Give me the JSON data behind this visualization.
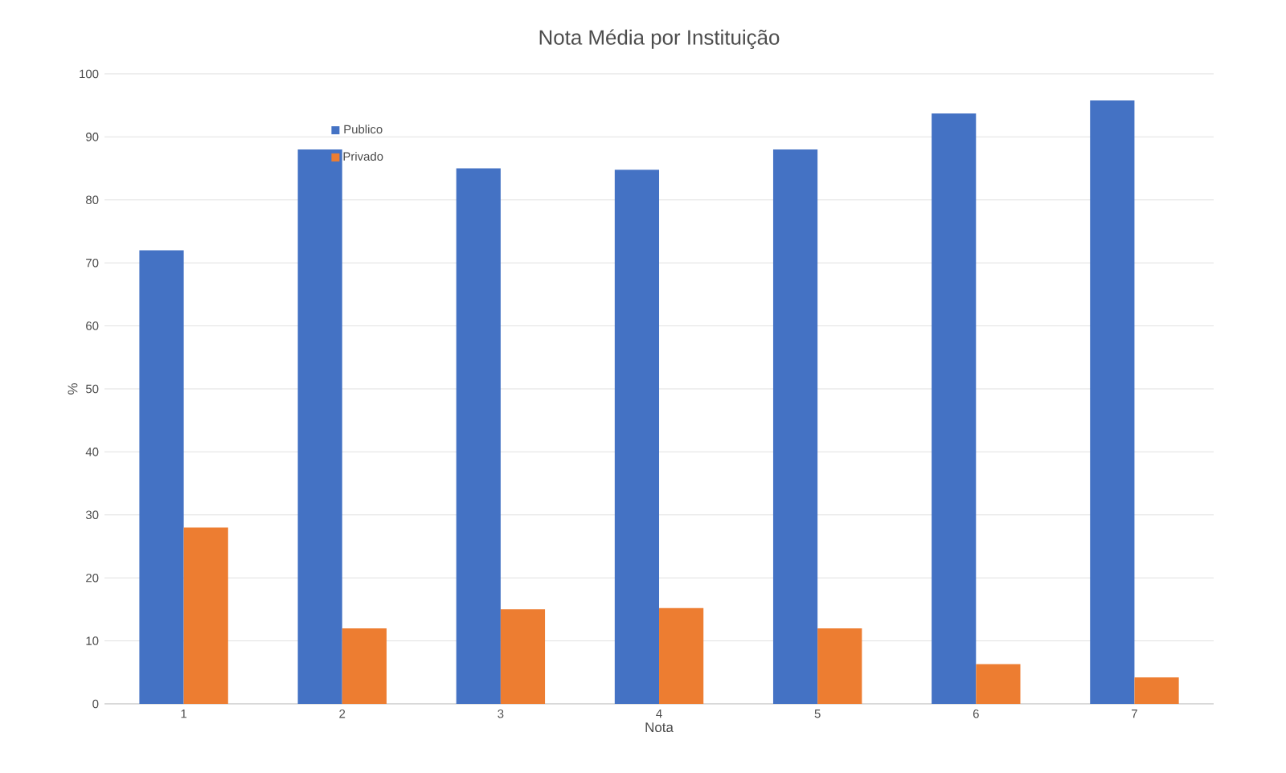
{
  "chart_data": {
    "type": "bar",
    "title": "Nota Média por Instituição",
    "xlabel": "Nota",
    "ylabel": "%",
    "categories": [
      "1",
      "2",
      "3",
      "4",
      "5",
      "6",
      "7"
    ],
    "series": [
      {
        "name": "Publico",
        "color": "#4472c4",
        "values": [
          72,
          88,
          85,
          84.8,
          88,
          93.7,
          95.8
        ]
      },
      {
        "name": "Privado",
        "color": "#ed7d31",
        "values": [
          28,
          12,
          15,
          15.2,
          12,
          6.3,
          4.2
        ]
      }
    ],
    "ylim": [
      0,
      100
    ],
    "yticks": [
      0,
      10,
      20,
      30,
      40,
      50,
      60,
      70,
      80,
      90,
      100
    ],
    "grid": "y",
    "legend": "top left"
  }
}
